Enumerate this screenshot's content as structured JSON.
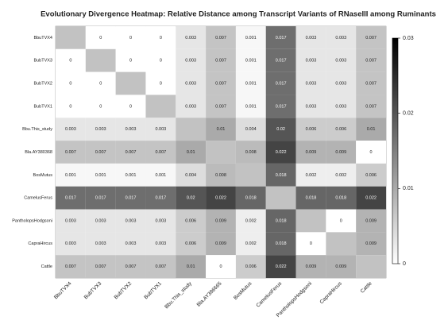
{
  "chart_data": {
    "type": "heatmap",
    "title": "Evolutionary Divergence Heatmap: Relative Distance among Transcript Variants of RNaseIII among Ruminants",
    "x_categories": [
      "BbuTVX4",
      "BubTVX3",
      "BubTVX2",
      "BubTVX1",
      "Bbu.This_study",
      "Bla.AY386665",
      "BosMutus",
      "CamelusFerus",
      "PantholopsHodgsoni",
      "CapraHircus",
      "Cattle"
    ],
    "y_categories": [
      "BbuTVX4",
      "BubTVX3",
      "BubTVX2",
      "BubTVX1",
      "Bbu.This_study",
      "Bla.AY380368",
      "BosMutus",
      "CamelusFerus",
      "PantholopsHodgsoni",
      "CapraHircus",
      "Cattle"
    ],
    "z": [
      [
        null,
        0,
        0,
        0,
        0.003,
        0.007,
        0.001,
        0.017,
        0.003,
        0.003,
        0.007
      ],
      [
        0,
        null,
        0,
        0,
        0.003,
        0.007,
        0.001,
        0.017,
        0.003,
        0.003,
        0.007
      ],
      [
        0,
        0,
        null,
        0,
        0.003,
        0.007,
        0.001,
        0.017,
        0.003,
        0.003,
        0.007
      ],
      [
        0,
        0,
        0,
        null,
        0.003,
        0.007,
        0.001,
        0.017,
        0.003,
        0.003,
        0.007
      ],
      [
        0.003,
        0.003,
        0.003,
        0.003,
        null,
        0.01,
        0.004,
        0.02,
        0.006,
        0.006,
        0.01
      ],
      [
        0.007,
        0.007,
        0.007,
        0.007,
        0.01,
        null,
        0.008,
        0.022,
        0.009,
        0.009,
        0
      ],
      [
        0.001,
        0.001,
        0.001,
        0.001,
        0.004,
        0.008,
        null,
        0.018,
        0.002,
        0.002,
        0.006
      ],
      [
        0.017,
        0.017,
        0.017,
        0.017,
        0.02,
        0.022,
        0.018,
        null,
        0.018,
        0.018,
        0.022
      ],
      [
        0.003,
        0.003,
        0.003,
        0.003,
        0.006,
        0.009,
        0.002,
        0.018,
        null,
        0,
        0.009
      ],
      [
        0.003,
        0.003,
        0.003,
        0.003,
        0.006,
        0.009,
        0.002,
        0.018,
        0,
        null,
        0.009
      ],
      [
        0.007,
        0.007,
        0.007,
        0.007,
        0.01,
        0,
        0.006,
        0.022,
        0.009,
        0.009,
        null
      ]
    ],
    "zlim": [
      0,
      0.03
    ],
    "zticks": [
      0,
      0.01,
      0.02,
      0.03
    ],
    "colormap": [
      "#ffffff",
      "#000000"
    ],
    "missing_color": "#c2c2c2"
  }
}
